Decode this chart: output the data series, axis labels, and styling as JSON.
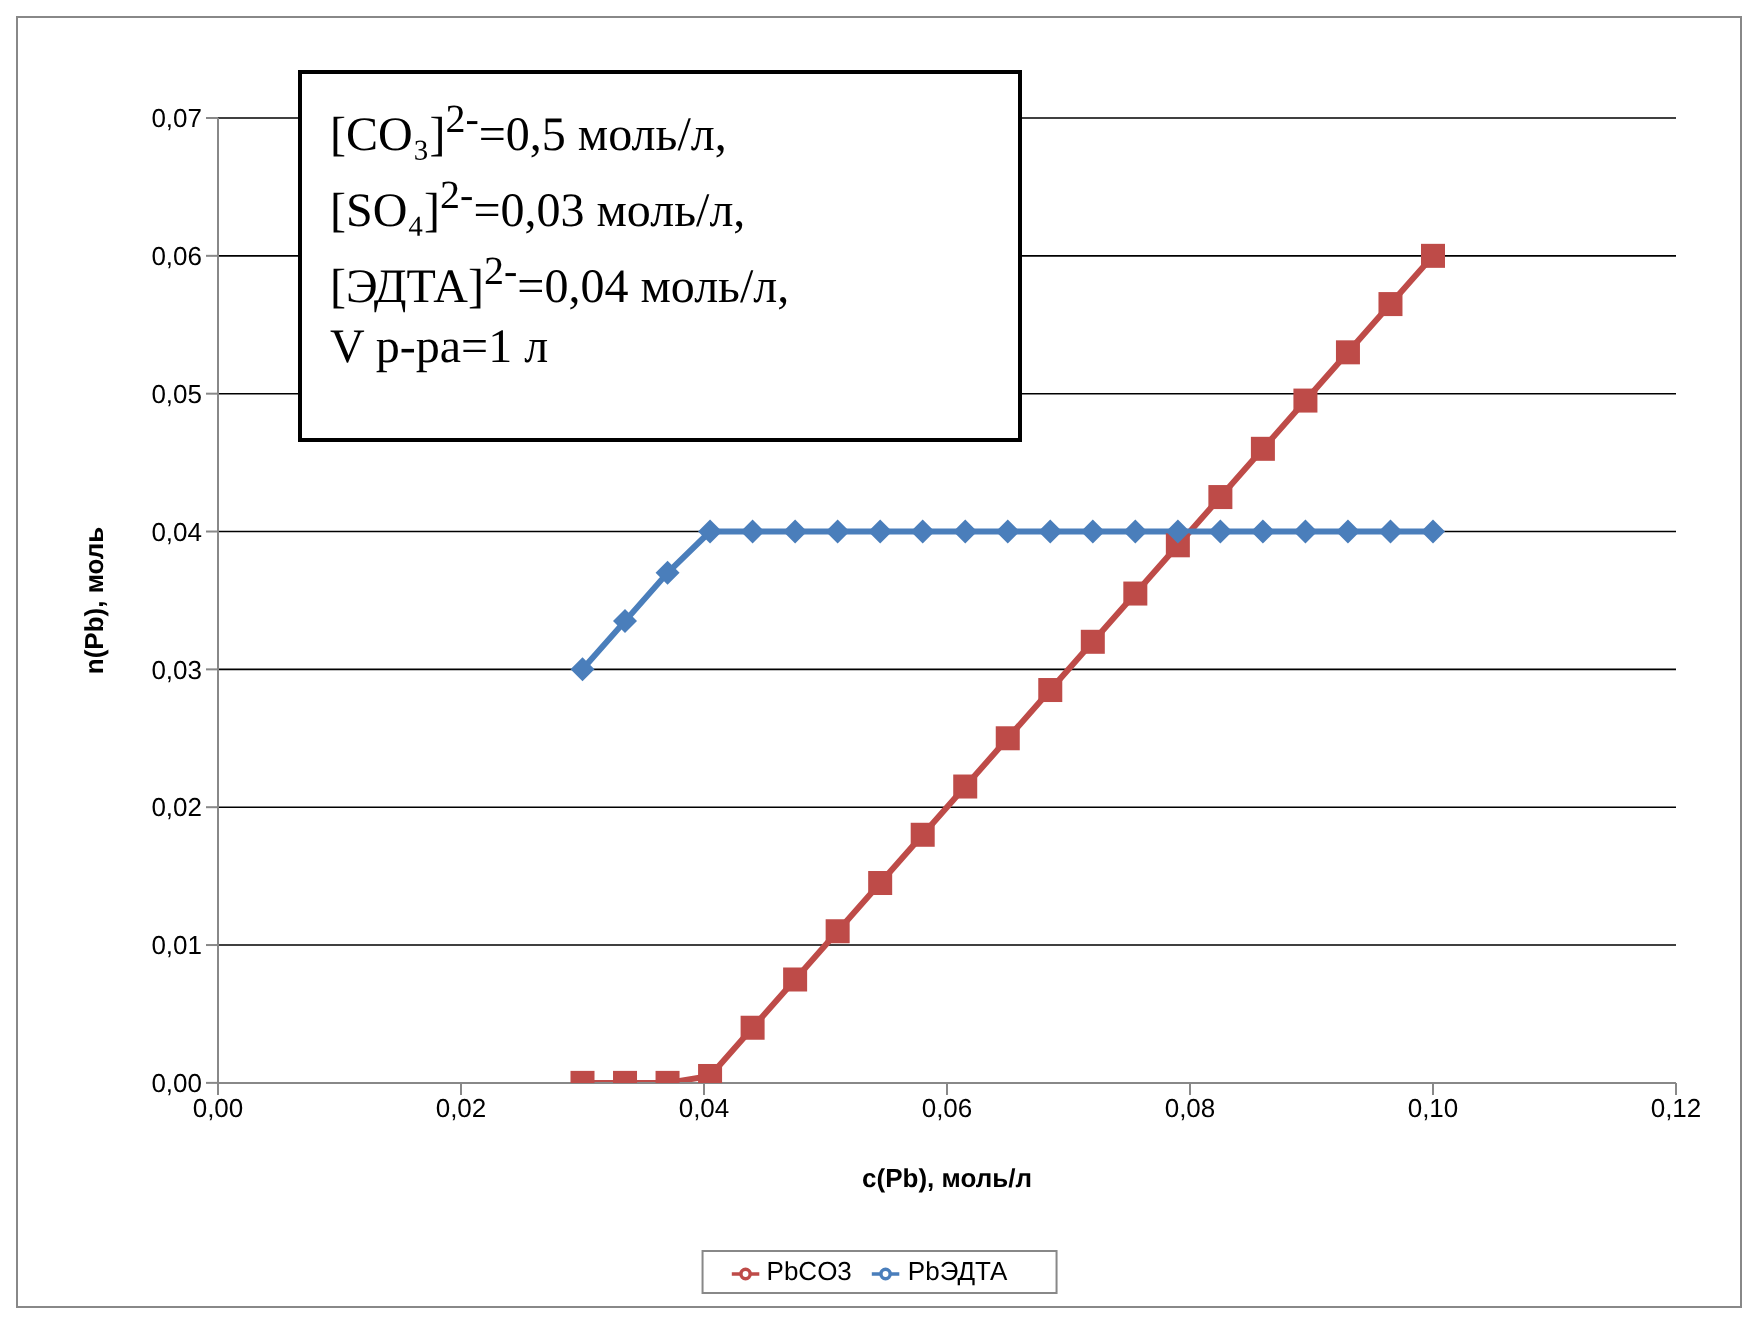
{
  "chart_data": {
    "type": "line",
    "xlabel": "c(Pb), моль/л",
    "ylabel": "n(Pb), моль",
    "x": [
      0.03,
      0.0335,
      0.037,
      0.0405,
      0.044,
      0.0475,
      0.051,
      0.0545,
      0.058,
      0.0615,
      0.065,
      0.0685,
      0.072,
      0.0755,
      0.079,
      0.0825,
      0.086,
      0.0895,
      0.093,
      0.0965,
      0.1
    ],
    "series": [
      {
        "name": "PbCO3",
        "color": "#be4b48",
        "marker": "square",
        "values": [
          0,
          0,
          0,
          0.0005,
          0.004,
          0.0075,
          0.011,
          0.0145,
          0.018,
          0.0215,
          0.025,
          0.0285,
          0.032,
          0.0355,
          0.039,
          0.0425,
          0.046,
          0.0495,
          0.053,
          0.0565,
          0.06
        ]
      },
      {
        "name": "PbЭДТА",
        "color": "#4a7ebb",
        "marker": "diamond",
        "values": [
          0.03,
          0.0335,
          0.037,
          0.04,
          0.04,
          0.04,
          0.04,
          0.04,
          0.04,
          0.04,
          0.04,
          0.04,
          0.04,
          0.04,
          0.04,
          0.04,
          0.04,
          0.04,
          0.04,
          0.04,
          0.04
        ]
      }
    ],
    "xlim": [
      0,
      0.12
    ],
    "xticks": [
      {
        "value": 0,
        "label": "0,00"
      },
      {
        "value": 0.02,
        "label": "0,02"
      },
      {
        "value": 0.04,
        "label": "0,04"
      },
      {
        "value": 0.06,
        "label": "0,06"
      },
      {
        "value": 0.08,
        "label": "0,08"
      },
      {
        "value": 0.1,
        "label": "0,10"
      },
      {
        "value": 0.12,
        "label": "0,12"
      }
    ],
    "ylim": [
      0,
      0.07
    ],
    "yticks": [
      {
        "value": 0,
        "label": "0,00"
      },
      {
        "value": 0.01,
        "label": "0,01"
      },
      {
        "value": 0.02,
        "label": "0,02"
      },
      {
        "value": 0.03,
        "label": "0,03"
      },
      {
        "value": 0.04,
        "label": "0,04"
      },
      {
        "value": 0.05,
        "label": "0,05"
      },
      {
        "value": 0.06,
        "label": "0,06"
      },
      {
        "value": 0.07,
        "label": "0,07"
      }
    ],
    "grid": "y",
    "legend": "bottom",
    "annotations": [
      "[CO₃]$^{2-}$=0,5 моль/л,",
      "[SO₄]$^{2-}$=0,03 моль/л,",
      "[ЭДТА]$^{2-}$=0,04 моль/л,",
      "V р-ра=1 л"
    ]
  }
}
